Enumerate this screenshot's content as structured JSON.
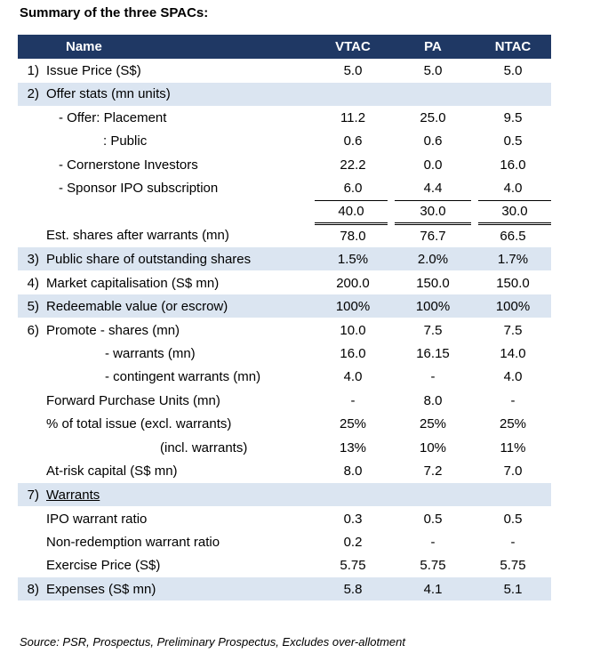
{
  "title": "Summary of the three SPACs:",
  "header": {
    "name": "Name",
    "cols": [
      "VTAC",
      "PA",
      "NTAC"
    ]
  },
  "rows": [
    {
      "n": "1)",
      "label": "Issue Price (S$)",
      "vals": [
        "5.0",
        "5.0",
        "5.0"
      ],
      "hl": false,
      "indent": 0
    },
    {
      "n": "2)",
      "label": "Offer stats (mn units)",
      "vals": [
        "",
        "",
        ""
      ],
      "hl": true,
      "indent": 0
    },
    {
      "n": "",
      "label": "- Offer: Placement",
      "vals": [
        "11.2",
        "25.0",
        "9.5"
      ],
      "hl": false,
      "indent": 14
    },
    {
      "n": "",
      "label": ": Public",
      "vals": [
        "0.6",
        "0.6",
        "0.5"
      ],
      "hl": false,
      "indent": 64
    },
    {
      "n": "",
      "label": "- Cornerstone Investors",
      "vals": [
        "22.2",
        "0.0",
        "16.0"
      ],
      "hl": false,
      "indent": 14
    },
    {
      "n": "",
      "label": "- Sponsor IPO subscription",
      "vals": [
        "6.0",
        "4.4",
        "4.0"
      ],
      "hl": false,
      "indent": 14
    },
    {
      "n": "",
      "label": "",
      "vals": [
        "40.0",
        "30.0",
        "30.0"
      ],
      "hl": false,
      "indent": 0,
      "total": true
    },
    {
      "n": "",
      "label": "Est. shares after warrants (mn)",
      "vals": [
        "78.0",
        "76.7",
        "66.5"
      ],
      "hl": false,
      "indent": 0
    },
    {
      "n": "3)",
      "label": "Public share of outstanding shares",
      "vals": [
        "1.5%",
        "2.0%",
        "1.7%"
      ],
      "hl": true,
      "indent": 0
    },
    {
      "n": "4)",
      "label": "Market capitalisation  (S$ mn)",
      "vals": [
        "200.0",
        "150.0",
        "150.0"
      ],
      "hl": false,
      "indent": 0
    },
    {
      "n": "5)",
      "label": "Redeemable value (or escrow)",
      "vals": [
        "100%",
        "100%",
        "100%"
      ],
      "hl": true,
      "indent": 0
    },
    {
      "n": "6)",
      "label": "Promote - shares (mn)",
      "vals": [
        "10.0",
        "7.5",
        "7.5"
      ],
      "hl": false,
      "indent": 0
    },
    {
      "n": "",
      "label": "- warrants (mn)",
      "vals": [
        "16.0",
        "16.15",
        "14.0"
      ],
      "hl": false,
      "indent": 66
    },
    {
      "n": "",
      "label": "- contingent warrants (mn)",
      "vals": [
        "4.0",
        "-",
        "4.0"
      ],
      "hl": false,
      "indent": 66
    },
    {
      "n": "",
      "label": "Forward Purchase Units (mn)",
      "vals": [
        "-",
        "8.0",
        "-"
      ],
      "hl": false,
      "indent": 0
    },
    {
      "n": "",
      "label": "% of total issue (excl. warrants)",
      "vals": [
        "25%",
        "25%",
        "25%"
      ],
      "hl": false,
      "indent": 0
    },
    {
      "n": "",
      "label": "(incl. warrants)",
      "vals": [
        "13%",
        "10%",
        "11%"
      ],
      "hl": false,
      "indent": 128
    },
    {
      "n": "",
      "label": "At-risk capital (S$ mn)",
      "vals": [
        "8.0",
        "7.2",
        "7.0"
      ],
      "hl": false,
      "indent": 0
    },
    {
      "n": "7)",
      "label": "Warrants",
      "vals": [
        "",
        "",
        ""
      ],
      "hl": true,
      "indent": 0,
      "underline": true
    },
    {
      "n": "",
      "label": "IPO warrant ratio",
      "vals": [
        "0.3",
        "0.5",
        "0.5"
      ],
      "hl": false,
      "indent": 0
    },
    {
      "n": "",
      "label": "Non-redemption warrant ratio",
      "vals": [
        "0.2",
        "-",
        "-"
      ],
      "hl": false,
      "indent": 0
    },
    {
      "n": "",
      "label": "Exercise Price (S$)",
      "vals": [
        "5.75",
        "5.75",
        "5.75"
      ],
      "hl": false,
      "indent": 0
    },
    {
      "n": "8)",
      "label": "Expenses (S$ mn)",
      "vals": [
        "5.8",
        "4.1",
        "5.1"
      ],
      "hl": true,
      "indent": 0
    }
  ],
  "source": "Source: PSR, Prospectus, Preliminary Prospectus, Excludes over-allotment"
}
